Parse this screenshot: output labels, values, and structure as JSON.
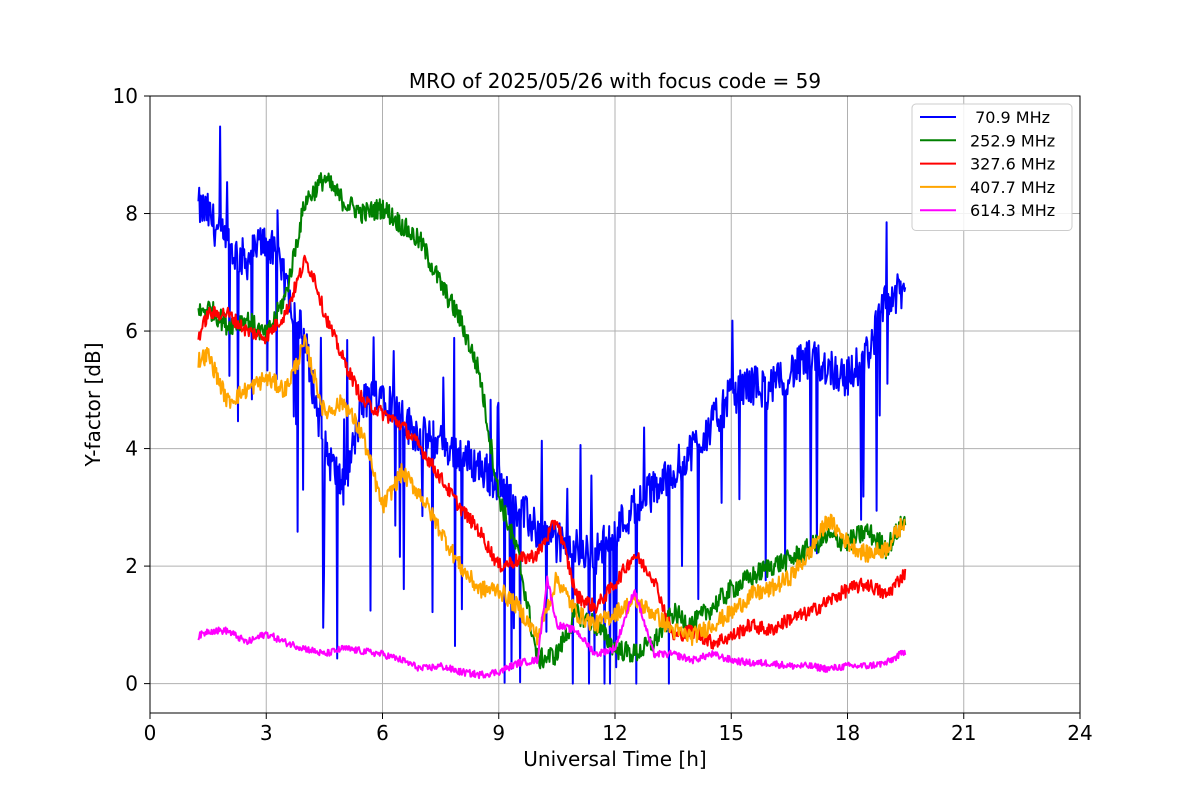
{
  "chart_data": {
    "type": "line",
    "title": "MRO of 2025/05/26 with focus code = 59",
    "xlabel": "Universal Time [h]",
    "ylabel": "Y-factor [dB]",
    "xlim": [
      0,
      24
    ],
    "ylim": [
      -0.5,
      10
    ],
    "xticks": [
      0,
      3,
      6,
      9,
      12,
      15,
      18,
      21,
      24
    ],
    "yticks": [
      0,
      2,
      4,
      6,
      8,
      10
    ],
    "grid": true,
    "legend_position": "top-right",
    "series": [
      {
        "name": " 70.9 MHz",
        "color": "#0000ff",
        "noise": 0.35,
        "x": [
          1.25,
          1.5,
          2.0,
          2.5,
          3.0,
          3.5,
          4.0,
          4.5,
          5.0,
          5.5,
          6.0,
          6.5,
          7.0,
          7.5,
          8.0,
          8.5,
          9.0,
          9.5,
          10.0,
          10.5,
          11.0,
          11.5,
          12.0,
          12.5,
          13.0,
          13.5,
          14.0,
          14.5,
          15.0,
          15.5,
          16.0,
          16.5,
          17.0,
          17.5,
          18.0,
          18.5,
          19.0,
          19.5
        ],
        "y": [
          8.1,
          8.0,
          7.4,
          7.2,
          7.6,
          6.8,
          5.8,
          4.0,
          3.3,
          4.8,
          5.0,
          4.5,
          4.2,
          4.1,
          3.9,
          3.7,
          3.4,
          3.0,
          2.6,
          2.4,
          2.3,
          2.2,
          2.6,
          3.0,
          3.3,
          3.6,
          4.0,
          4.4,
          4.9,
          5.1,
          5.0,
          5.3,
          5.5,
          5.4,
          5.2,
          5.6,
          6.5,
          6.7
        ]
      },
      {
        "name": "252.9 MHz",
        "color": "#008000",
        "noise": 0.18,
        "x": [
          1.25,
          1.5,
          2.0,
          2.5,
          3.0,
          3.5,
          4.0,
          4.5,
          5.0,
          5.5,
          6.0,
          6.5,
          7.0,
          7.5,
          8.0,
          8.5,
          9.0,
          9.5,
          10.0,
          10.5,
          11.0,
          11.5,
          12.0,
          12.5,
          13.0,
          13.5,
          14.0,
          14.5,
          15.0,
          15.5,
          16.0,
          16.5,
          17.0,
          17.5,
          18.0,
          18.5,
          19.0,
          19.5
        ],
        "y": [
          6.3,
          6.4,
          6.1,
          6.2,
          5.9,
          6.6,
          8.2,
          8.6,
          8.2,
          8.0,
          8.1,
          7.8,
          7.5,
          6.8,
          6.2,
          5.3,
          3.2,
          2.2,
          0.4,
          0.5,
          1.2,
          1.0,
          0.6,
          0.5,
          0.7,
          1.2,
          1.0,
          1.3,
          1.6,
          1.8,
          2.0,
          2.1,
          2.3,
          2.5,
          2.4,
          2.6,
          2.3,
          2.8
        ]
      },
      {
        "name": "327.6 MHz",
        "color": "#ff0000",
        "noise": 0.12,
        "x": [
          1.25,
          1.5,
          2.0,
          2.5,
          3.0,
          3.5,
          4.0,
          4.25,
          4.5,
          5.0,
          5.5,
          6.0,
          6.5,
          7.0,
          7.5,
          8.0,
          8.5,
          9.0,
          9.5,
          10.0,
          10.5,
          11.0,
          11.5,
          12.0,
          12.5,
          13.0,
          13.5,
          14.0,
          14.5,
          15.0,
          15.5,
          16.0,
          16.5,
          17.0,
          17.5,
          18.0,
          18.5,
          19.0,
          19.5
        ],
        "y": [
          5.9,
          6.3,
          6.3,
          6.0,
          5.9,
          6.3,
          7.2,
          6.9,
          6.3,
          5.5,
          4.8,
          4.6,
          4.4,
          4.0,
          3.5,
          3.0,
          2.6,
          2.0,
          2.1,
          2.2,
          2.8,
          1.5,
          1.3,
          1.7,
          2.2,
          1.8,
          0.8,
          0.9,
          0.7,
          0.8,
          1.0,
          0.9,
          1.1,
          1.2,
          1.4,
          1.6,
          1.7,
          1.5,
          1.9
        ]
      },
      {
        "name": "407.7 MHz",
        "color": "#ffa500",
        "noise": 0.15,
        "x": [
          1.25,
          1.5,
          2.0,
          2.5,
          3.0,
          3.5,
          4.0,
          4.5,
          5.0,
          5.5,
          6.0,
          6.5,
          7.0,
          7.5,
          8.0,
          8.5,
          9.0,
          9.5,
          10.0,
          10.5,
          11.0,
          11.5,
          12.0,
          12.5,
          13.0,
          13.5,
          14.0,
          14.5,
          15.0,
          15.5,
          16.0,
          16.5,
          17.0,
          17.5,
          18.0,
          18.5,
          19.0,
          19.5
        ],
        "y": [
          5.5,
          5.6,
          4.8,
          5.0,
          5.2,
          5.0,
          5.8,
          4.6,
          4.8,
          4.2,
          3.0,
          3.6,
          3.2,
          2.6,
          2.0,
          1.6,
          1.6,
          1.3,
          0.8,
          1.8,
          1.2,
          1.0,
          1.2,
          1.4,
          1.2,
          0.9,
          0.8,
          1.0,
          1.2,
          1.5,
          1.6,
          1.8,
          2.2,
          2.8,
          2.4,
          2.2,
          2.3,
          2.8
        ]
      },
      {
        "name": "614.3 MHz",
        "color": "#ff00ff",
        "noise": 0.06,
        "x": [
          1.25,
          1.5,
          2.0,
          2.5,
          3.0,
          3.5,
          4.0,
          4.5,
          5.0,
          5.5,
          6.0,
          6.5,
          7.0,
          7.5,
          8.0,
          8.5,
          9.0,
          9.5,
          10.0,
          10.25,
          10.5,
          11.0,
          11.5,
          12.0,
          12.5,
          13.0,
          13.5,
          14.0,
          14.5,
          15.0,
          15.5,
          16.0,
          16.5,
          17.0,
          17.5,
          18.0,
          18.5,
          19.0,
          19.5
        ],
        "y": [
          0.8,
          0.9,
          0.9,
          0.7,
          0.85,
          0.7,
          0.6,
          0.5,
          0.6,
          0.55,
          0.5,
          0.4,
          0.25,
          0.3,
          0.2,
          0.15,
          0.2,
          0.35,
          0.4,
          1.8,
          1.0,
          0.9,
          0.5,
          0.6,
          1.6,
          0.5,
          0.5,
          0.4,
          0.5,
          0.4,
          0.35,
          0.35,
          0.3,
          0.3,
          0.25,
          0.3,
          0.3,
          0.35,
          0.55
        ]
      }
    ]
  }
}
